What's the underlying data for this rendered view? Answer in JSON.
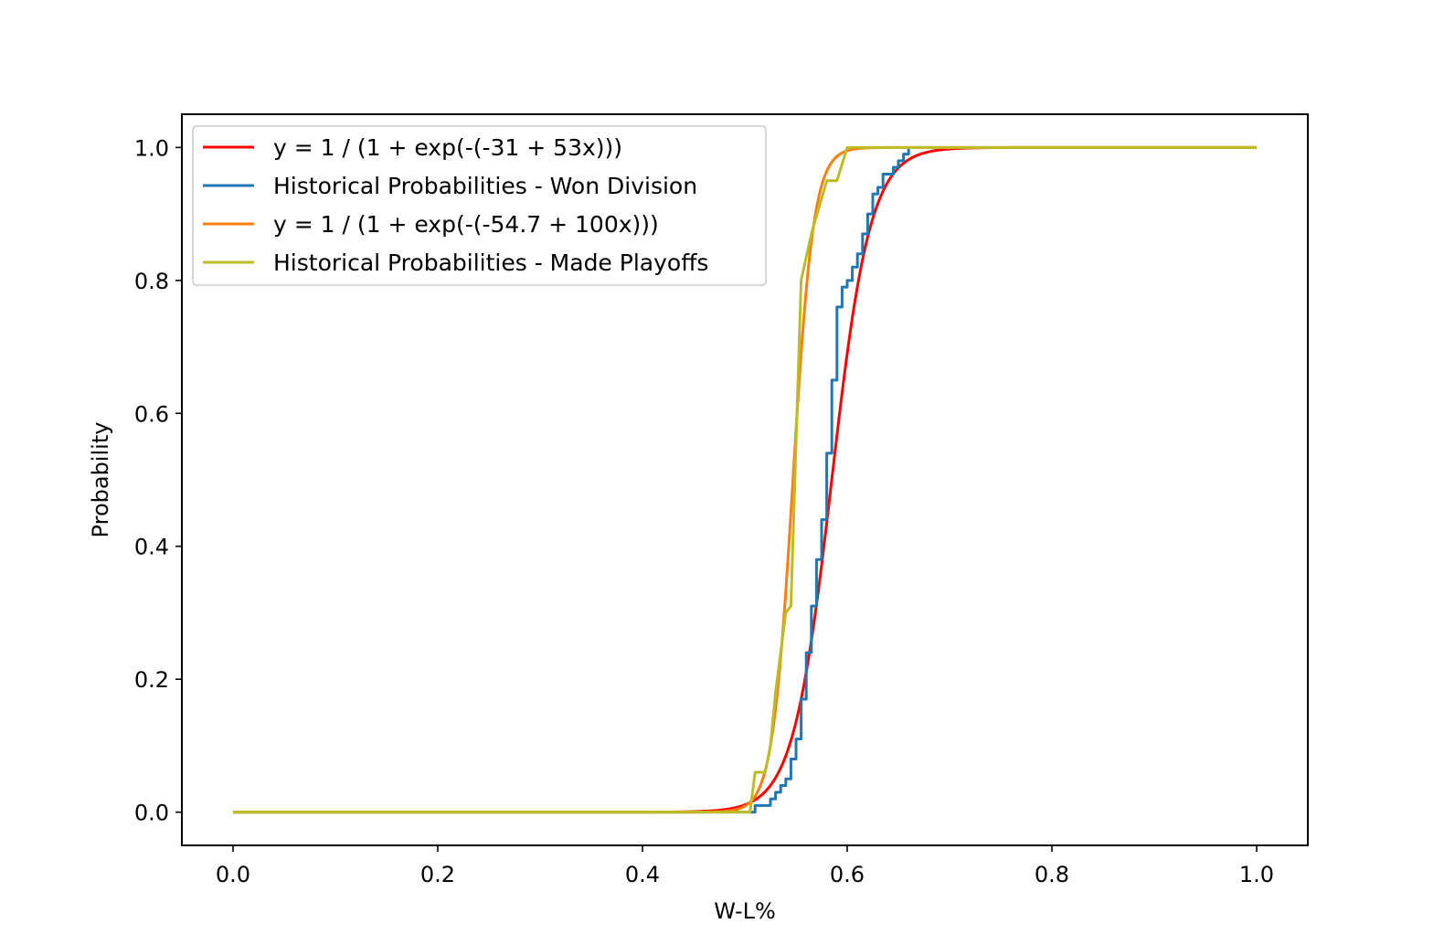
{
  "chart_data": {
    "type": "line",
    "title": "",
    "xlabel": "W-L%",
    "ylabel": "Probability",
    "xlim": [
      -0.05,
      1.05
    ],
    "ylim": [
      -0.05,
      1.05
    ],
    "xticks": [
      0.0,
      0.2,
      0.4,
      0.6,
      0.8,
      1.0
    ],
    "xtick_labels": [
      "0.0",
      "0.2",
      "0.4",
      "0.6",
      "0.8",
      "1.0"
    ],
    "yticks": [
      0.0,
      0.2,
      0.4,
      0.6,
      0.8,
      1.0
    ],
    "ytick_labels": [
      "0.0",
      "0.2",
      "0.4",
      "0.6",
      "0.8",
      "1.0"
    ],
    "grid": false,
    "legend_position": "upper-left",
    "series": [
      {
        "name": "y = 1 / (1 + exp(-(-31 + 53x)))",
        "color": "#ff0000",
        "kind": "logistic",
        "intercept": -31,
        "slope": 53,
        "x_range": [
          0,
          1
        ]
      },
      {
        "name": "Historical Probabilities - Won Division",
        "color": "#1f77b4",
        "kind": "step",
        "x": [
          0.0,
          0.505,
          0.51,
          0.525,
          0.53,
          0.535,
          0.54,
          0.545,
          0.55,
          0.555,
          0.56,
          0.565,
          0.57,
          0.575,
          0.58,
          0.585,
          0.59,
          0.595,
          0.6,
          0.605,
          0.61,
          0.615,
          0.62,
          0.625,
          0.63,
          0.635,
          0.64,
          0.645,
          0.65,
          0.655,
          0.66
        ],
        "y": [
          0.0,
          0.0,
          0.01,
          0.02,
          0.03,
          0.04,
          0.05,
          0.08,
          0.11,
          0.17,
          0.24,
          0.31,
          0.38,
          0.44,
          0.54,
          0.65,
          0.76,
          0.79,
          0.8,
          0.82,
          0.84,
          0.87,
          0.9,
          0.93,
          0.94,
          0.96,
          0.96,
          0.97,
          0.98,
          0.99,
          1.0
        ]
      },
      {
        "name": "y = 1 / (1 + exp(-(-54.7 + 100x)))",
        "color": "#ff7f0e",
        "kind": "logistic",
        "intercept": -54.7,
        "slope": 100,
        "x_range": [
          0,
          1
        ]
      },
      {
        "name": "Historical Probabilities - Made Playoffs",
        "color": "#bcbd22",
        "kind": "line",
        "x": [
          0.0,
          0.505,
          0.51,
          0.52,
          0.525,
          0.53,
          0.54,
          0.545,
          0.555,
          0.565,
          0.58,
          0.585,
          0.59,
          0.6,
          0.61,
          1.0
        ],
        "y": [
          0.0,
          0.0,
          0.06,
          0.06,
          0.1,
          0.18,
          0.3,
          0.31,
          0.8,
          0.87,
          0.95,
          0.95,
          0.95,
          1.0,
          1.0,
          1.0
        ]
      }
    ]
  }
}
